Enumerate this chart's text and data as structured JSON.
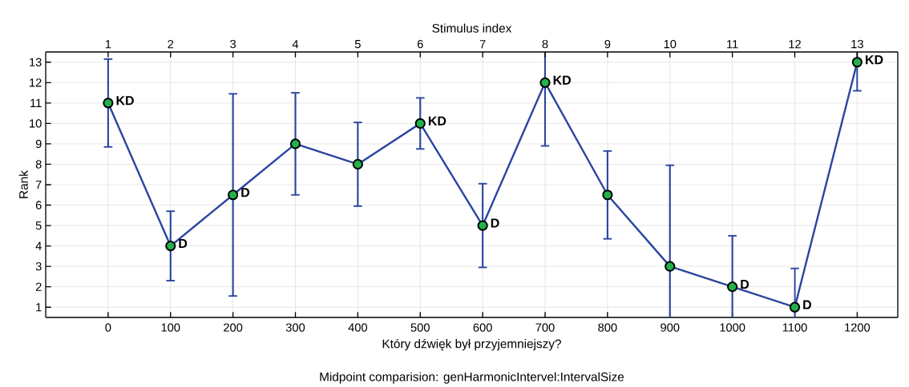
{
  "chart_data": {
    "type": "line",
    "xlabel": "Który dźwięk był przyjemniejszy?",
    "ylabel": "Rank",
    "x2label": "Stimulus index",
    "annotations": [
      "Midpoint comparision: genHarmonicIntervel:IntervalSize",
      {
        "text": "KD",
        "x": 0,
        "y": 11
      },
      {
        "text": "D",
        "x": 100,
        "y": 4
      },
      {
        "text": "D",
        "x": 200,
        "y": 6.5
      },
      {
        "text": "KD",
        "x": 500,
        "y": 10
      },
      {
        "text": "D",
        "x": 600,
        "y": 5
      },
      {
        "text": "KD",
        "x": 700,
        "y": 12
      },
      {
        "text": "D",
        "x": 1000,
        "y": 2
      },
      {
        "text": "D",
        "x": 1100,
        "y": 1
      },
      {
        "text": "KD",
        "x": 1200,
        "y": 13
      }
    ],
    "x": [
      0,
      100,
      200,
      300,
      400,
      500,
      600,
      700,
      800,
      900,
      1000,
      1100,
      1200
    ],
    "series": [
      {
        "color": "#2a45a0",
        "colors": [
          "#22b14c",
          "#22b14c",
          "#22b14c",
          "#22b14c",
          "#22b14c",
          "#22b14c",
          "#22b14c",
          "#22b14c",
          "#22b14c",
          "#22b14c",
          "#22b14c",
          "#22b14c",
          "#22b14c"
        ],
        "values": [
          11,
          4,
          6.5,
          9,
          8,
          10,
          5,
          12,
          6.5,
          3,
          2,
          1,
          13
        ],
        "errors": [
          [
            8.85,
            13.15
          ],
          [
            2.3,
            5.7
          ],
          [
            1.55,
            11.45
          ],
          [
            6.5,
            11.5
          ],
          [
            5.95,
            10.05
          ],
          [
            8.75,
            11.25
          ],
          [
            2.95,
            7.05
          ],
          [
            8.9,
            13.5
          ],
          [
            4.35,
            8.65
          ],
          [
            0.5,
            7.95
          ],
          [
            0.5,
            4.5
          ],
          [
            0.5,
            2.9
          ],
          [
            11.6,
            13.5
          ]
        ]
      }
    ],
    "xlim": [
      -100,
      1265
    ],
    "ylim": [
      0.5,
      13.5
    ],
    "x2lim": [
      0,
      13.65
    ],
    "xticks": [
      0,
      100,
      200,
      300,
      400,
      500,
      600,
      700,
      800,
      900,
      1000,
      1100,
      1200
    ],
    "yticks": [
      1,
      2,
      3,
      4,
      5,
      6,
      7,
      8,
      9,
      10,
      11,
      12,
      13
    ],
    "x2ticks": [
      1,
      2,
      3,
      4,
      5,
      6,
      7,
      8,
      9,
      10,
      11,
      12,
      13
    ],
    "grid": true,
    "marker": "circle",
    "line_style": "solid"
  }
}
